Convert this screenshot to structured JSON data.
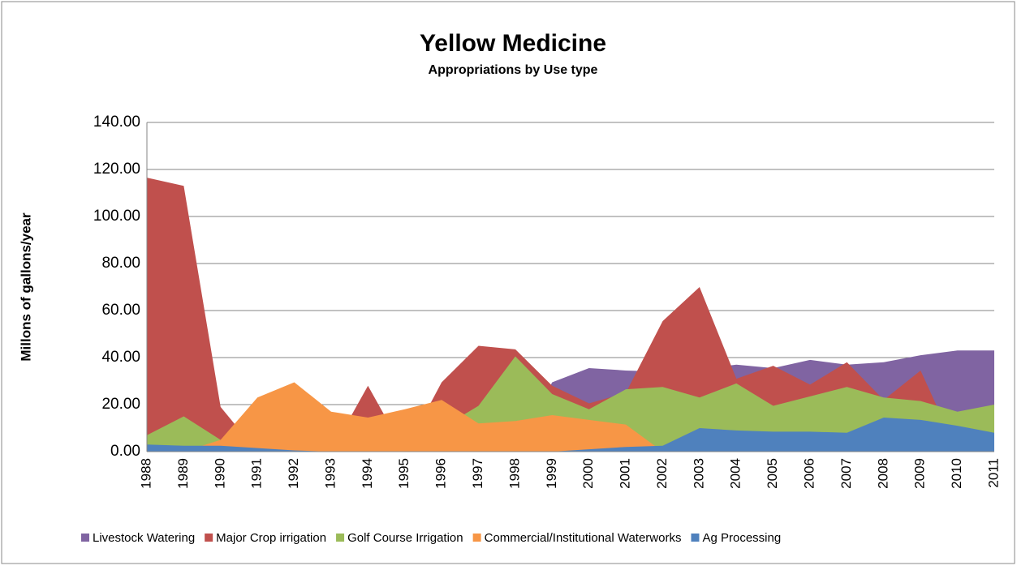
{
  "chart_data": {
    "type": "area",
    "title": "Yellow Medicine",
    "subtitle": "Appropriations by Use type",
    "y_label": "Millons of gallons/year",
    "categories": [
      "1988",
      "1989",
      "1990",
      "1991",
      "1992",
      "1993",
      "1994",
      "1995",
      "1996",
      "1997",
      "1998",
      "1999",
      "2000",
      "2001",
      "2002",
      "2003",
      "2004",
      "2005",
      "2006",
      "2007",
      "2008",
      "2009",
      "2010",
      "2011"
    ],
    "series": [
      {
        "name": "Livestock Watering",
        "color": "#8064a2",
        "values": [
          0,
          0,
          0,
          0,
          0,
          0,
          0,
          0,
          0,
          0,
          0,
          29.5,
          35.5,
          34.5,
          34,
          35,
          37,
          35.5,
          39,
          37,
          38,
          41,
          43,
          43
        ]
      },
      {
        "name": "Major Crop irrigation",
        "color": "#c0504d",
        "values": [
          116.5,
          113,
          19,
          0,
          0,
          0,
          28,
          0,
          29.5,
          45,
          43.5,
          28,
          20.5,
          25,
          55.5,
          70,
          31,
          36.5,
          28.5,
          38,
          22,
          34.5,
          0,
          0
        ]
      },
      {
        "name": "Golf Course Irrigation",
        "color": "#9bbb59",
        "values": [
          7,
          15,
          5,
          0,
          0,
          0,
          0,
          0,
          10,
          19.5,
          40.5,
          24.5,
          18,
          26.5,
          27.5,
          23,
          29,
          19.5,
          23.5,
          27.5,
          23,
          21.5,
          17,
          20
        ]
      },
      {
        "name": "Commercial/Institutional Waterworks",
        "color": "#f79646",
        "values": [
          0,
          0,
          5,
          23,
          29.5,
          17,
          14.5,
          18,
          22,
          12,
          13,
          15.5,
          13.5,
          11.5,
          0,
          0,
          0,
          0,
          0,
          0,
          0,
          0,
          0,
          0
        ]
      },
      {
        "name": "Ag Processing",
        "color": "#4f81bd",
        "values": [
          3,
          2.5,
          2.5,
          1.5,
          0.5,
          0,
          0,
          0,
          0,
          0,
          0,
          0,
          1,
          2,
          2.5,
          10,
          9,
          8.5,
          8.5,
          8,
          14.5,
          13.5,
          11,
          8
        ]
      }
    ],
    "ylim": [
      0,
      140
    ],
    "yticks": [
      {
        "value": 0,
        "label": "0.00"
      },
      {
        "value": 20,
        "label": "20.00"
      },
      {
        "value": 40,
        "label": "40.00"
      },
      {
        "value": 60,
        "label": "60.00"
      },
      {
        "value": 80,
        "label": "80.00"
      },
      {
        "value": 100,
        "label": "100.00"
      },
      {
        "value": 120,
        "label": "120.00"
      },
      {
        "value": 140,
        "label": "140.00"
      }
    ],
    "grid": true
  }
}
